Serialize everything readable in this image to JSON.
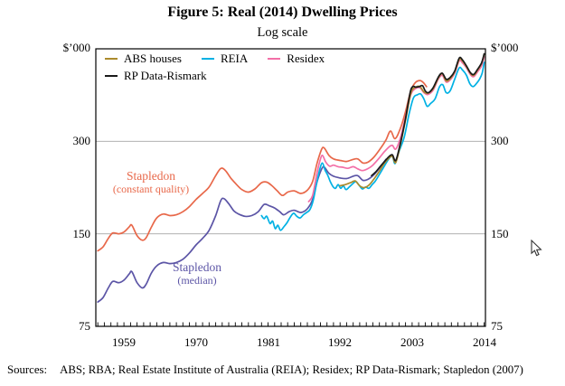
{
  "figure": {
    "title": "Figure 5: Real (2014) Dwelling Prices",
    "subtitle": "Log scale",
    "sources_label": "Sources:",
    "sources_text": "ABS; RBA; Real Estate Institute of Australia (REIA); Residex; RP Data-Rismark; Stapledon (2007)"
  },
  "axes": {
    "unit_label": "$’000",
    "y_tick_labels": [
      "300",
      "150",
      "75"
    ],
    "x_tick_labels": [
      "1959",
      "1970",
      "1981",
      "1992",
      "2003",
      "2014"
    ]
  },
  "legend": {
    "items": [
      {
        "label": "ABS houses",
        "color": "#ab8b2d"
      },
      {
        "label": "REIA",
        "color": "#00b1e4"
      },
      {
        "label": "Residex",
        "color": "#f36fa7"
      },
      {
        "label": "RP Data-Rismark",
        "color": "#1a1a1a"
      }
    ]
  },
  "cursor": {
    "icon": "mouse-pointer-icon"
  },
  "chart_data": {
    "type": "line",
    "title": "Figure 5: Real (2014) Dwelling Prices",
    "subtitle": "Log scale",
    "y_scale": "log",
    "unit": "$'000 (real 2014 dollars)",
    "x_domain": [
      1954.7,
      2014.2
    ],
    "y_domain": [
      75,
      600
    ],
    "y_gridlines": [
      150,
      300
    ],
    "y_ticks": [
      75,
      150,
      300,
      600
    ],
    "x_ticks": [
      1959,
      1970,
      1981,
      1992,
      2003,
      2014
    ],
    "minor_x_tick_every": 1,
    "grid": "horizontal-only",
    "legend_position": "top-left-inside",
    "annotations": [
      {
        "line1": "Stapledon",
        "line2": "(constant quality)",
        "color": "#e8684a"
      },
      {
        "line1": "Stapledon",
        "line2": "(median)",
        "color": "#5c55a6"
      }
    ],
    "series": [
      {
        "name": "Stapledon (constant quality)",
        "color": "#e8684a",
        "points": [
          [
            1955,
            132
          ],
          [
            1955.8,
            136
          ],
          [
            1956.6,
            145
          ],
          [
            1957.3,
            151
          ],
          [
            1958.2,
            150
          ],
          [
            1959,
            152
          ],
          [
            1959.8,
            158
          ],
          [
            1960.2,
            160
          ],
          [
            1961,
            148
          ],
          [
            1961.8,
            143
          ],
          [
            1962.4,
            146
          ],
          [
            1963.2,
            158
          ],
          [
            1964,
            169
          ],
          [
            1965,
            174
          ],
          [
            1966,
            172
          ],
          [
            1967,
            173
          ],
          [
            1968,
            177
          ],
          [
            1969,
            184
          ],
          [
            1970,
            194
          ],
          [
            1971,
            203
          ],
          [
            1972,
            213
          ],
          [
            1973,
            232
          ],
          [
            1973.8,
            245
          ],
          [
            1974.5,
            241
          ],
          [
            1975.3,
            228
          ],
          [
            1976.2,
            217
          ],
          [
            1977,
            209
          ],
          [
            1978,
            205
          ],
          [
            1979,
            210
          ],
          [
            1980,
            220
          ],
          [
            1980.8,
            221
          ],
          [
            1981.6,
            215
          ],
          [
            1982.4,
            207
          ],
          [
            1983.2,
            200
          ],
          [
            1984,
            205
          ],
          [
            1985,
            207
          ],
          [
            1986,
            203
          ],
          [
            1987,
            208
          ],
          [
            1987.8,
            222
          ],
          [
            1988.5,
            255
          ],
          [
            1989.2,
            283
          ],
          [
            1989.6,
            285
          ],
          [
            1990.3,
            270
          ],
          [
            1991,
            263
          ],
          [
            1992,
            260
          ],
          [
            1993,
            258
          ],
          [
            1994,
            262
          ],
          [
            1994.7,
            263
          ],
          [
            1995.5,
            255
          ],
          [
            1996.3,
            257
          ],
          [
            1997.2,
            267
          ],
          [
            1998.2,
            285
          ],
          [
            1999,
            303
          ],
          [
            1999.7,
            324
          ],
          [
            2000.4,
            306
          ],
          [
            2001.2,
            330
          ],
          [
            2002,
            375
          ],
          [
            2002.8,
            438
          ],
          [
            2003.5,
            466
          ],
          [
            2004.2,
            473
          ],
          [
            2004.7,
            466
          ],
          [
            2005.2,
            452
          ]
        ]
      },
      {
        "name": "Stapledon (median)",
        "color": "#5c55a6",
        "points": [
          [
            1955,
            90
          ],
          [
            1955.8,
            93
          ],
          [
            1956.6,
            100
          ],
          [
            1957.3,
            105
          ],
          [
            1958.2,
            104
          ],
          [
            1959,
            106
          ],
          [
            1959.8,
            111
          ],
          [
            1960.2,
            113
          ],
          [
            1961,
            104
          ],
          [
            1961.8,
            100
          ],
          [
            1962.4,
            103
          ],
          [
            1963.2,
            112
          ],
          [
            1964,
            118
          ],
          [
            1965,
            121
          ],
          [
            1966,
            120
          ],
          [
            1967,
            121
          ],
          [
            1968,
            124
          ],
          [
            1969,
            130
          ],
          [
            1970,
            138
          ],
          [
            1971,
            145
          ],
          [
            1972,
            154
          ],
          [
            1973,
            172
          ],
          [
            1973.8,
            193
          ],
          [
            1974.3,
            195
          ],
          [
            1975,
            188
          ],
          [
            1975.8,
            178
          ],
          [
            1976.5,
            174
          ],
          [
            1977.5,
            171
          ],
          [
            1978.5,
            172
          ],
          [
            1979.5,
            177
          ],
          [
            1980.4,
            187
          ],
          [
            1981.2,
            185
          ],
          [
            1982,
            182
          ],
          [
            1982.8,
            177
          ],
          [
            1983.4,
            173
          ],
          [
            1984.2,
            177
          ],
          [
            1985,
            179
          ],
          [
            1986,
            176
          ],
          [
            1987,
            181
          ],
          [
            1987.8,
            194
          ],
          [
            1988.5,
            222
          ],
          [
            1989.2,
            244
          ],
          [
            1989.6,
            247
          ],
          [
            1990.3,
            236
          ],
          [
            1991,
            231
          ],
          [
            1992,
            228
          ],
          [
            1993,
            227
          ],
          [
            1994,
            231
          ],
          [
            1994.7,
            232
          ],
          [
            1995.5,
            224
          ],
          [
            1996.3,
            226
          ],
          [
            1997.2,
            234
          ],
          [
            1998.2,
            248
          ],
          [
            1999,
            262
          ]
        ]
      },
      {
        "name": "REIA",
        "color": "#00b1e4",
        "points": [
          [
            1980,
            172
          ],
          [
            1980.4,
            168
          ],
          [
            1980.8,
            171
          ],
          [
            1981.3,
            162
          ],
          [
            1981.7,
            165
          ],
          [
            1982.1,
            156
          ],
          [
            1982.5,
            160
          ],
          [
            1982.9,
            154
          ],
          [
            1983.4,
            158
          ],
          [
            1983.9,
            163
          ],
          [
            1984.4,
            170
          ],
          [
            1984.9,
            175
          ],
          [
            1985.4,
            171
          ],
          [
            1985.9,
            169
          ],
          [
            1986.4,
            173
          ],
          [
            1986.9,
            176
          ],
          [
            1987.4,
            180
          ],
          [
            1987.9,
            193
          ],
          [
            1988.4,
            218
          ],
          [
            1988.9,
            243
          ],
          [
            1989.3,
            255
          ],
          [
            1989.7,
            242
          ],
          [
            1990.1,
            233
          ],
          [
            1990.5,
            222
          ],
          [
            1990.9,
            214
          ],
          [
            1991.3,
            211
          ],
          [
            1991.7,
            217
          ],
          [
            1992.1,
            211
          ],
          [
            1992.5,
            215
          ],
          [
            1992.9,
            209
          ],
          [
            1993.4,
            213
          ],
          [
            1993.9,
            218
          ],
          [
            1994.4,
            222
          ],
          [
            1994.9,
            216
          ],
          [
            1995.4,
            210
          ],
          [
            1995.9,
            213
          ],
          [
            1996.4,
            211
          ],
          [
            1996.9,
            217
          ],
          [
            1997.4,
            223
          ],
          [
            1998.1,
            236
          ],
          [
            1998.8,
            250
          ],
          [
            1999.5,
            264
          ],
          [
            2000,
            268
          ],
          [
            2000.4,
            254
          ],
          [
            2001,
            278
          ],
          [
            2001.8,
            310
          ],
          [
            2002.5,
            365
          ],
          [
            2003.2,
            415
          ],
          [
            2003.8,
            425
          ],
          [
            2004.3,
            428
          ],
          [
            2004.8,
            412
          ],
          [
            2005.3,
            390
          ],
          [
            2005.8,
            398
          ],
          [
            2006.5,
            412
          ],
          [
            2007.2,
            452
          ],
          [
            2007.7,
            458
          ],
          [
            2008.2,
            432
          ],
          [
            2008.8,
            438
          ],
          [
            2009.5,
            478
          ],
          [
            2010.2,
            520
          ],
          [
            2010.7,
            512
          ],
          [
            2011.3,
            492
          ],
          [
            2011.8,
            463
          ],
          [
            2012.3,
            452
          ],
          [
            2012.8,
            462
          ],
          [
            2013.3,
            478
          ],
          [
            2013.7,
            500
          ],
          [
            2014,
            542
          ]
        ]
      },
      {
        "name": "Residex",
        "color": "#f36fa7",
        "points": [
          [
            1987.2,
            191
          ],
          [
            1987.8,
            200
          ],
          [
            1988.4,
            232
          ],
          [
            1988.9,
            258
          ],
          [
            1989.3,
            270
          ],
          [
            1989.8,
            257
          ],
          [
            1990.4,
            249
          ],
          [
            1991,
            251
          ],
          [
            1991.7,
            248
          ],
          [
            1992.4,
            247
          ],
          [
            1993.2,
            245
          ],
          [
            1994,
            248
          ],
          [
            1994.7,
            244
          ],
          [
            1995.4,
            241
          ],
          [
            1996.2,
            244
          ],
          [
            1997,
            251
          ],
          [
            1998,
            265
          ],
          [
            1998.8,
            278
          ],
          [
            1999.5,
            288
          ],
          [
            2000,
            291
          ],
          [
            2000.5,
            283
          ],
          [
            2001.2,
            307
          ],
          [
            2002,
            360
          ],
          [
            2002.8,
            425
          ],
          [
            2003.5,
            445
          ],
          [
            2004.2,
            448
          ],
          [
            2004.8,
            432
          ],
          [
            2005.4,
            426
          ],
          [
            2006.2,
            440
          ],
          [
            2007,
            478
          ],
          [
            2007.6,
            492
          ],
          [
            2008.2,
            468
          ],
          [
            2008.8,
            475
          ],
          [
            2009.5,
            500
          ],
          [
            2010.2,
            548
          ],
          [
            2010.7,
            540
          ],
          [
            2011.3,
            520
          ],
          [
            2011.9,
            495
          ],
          [
            2012.4,
            487
          ],
          [
            2013,
            505
          ],
          [
            2013.6,
            528
          ],
          [
            2014,
            565
          ]
        ]
      },
      {
        "name": "ABS houses",
        "color": "#ab8b2d",
        "points": [
          [
            1992,
            215
          ],
          [
            1992.8,
            217
          ],
          [
            1993.6,
            220
          ],
          [
            1994.3,
            223
          ],
          [
            1995,
            215
          ],
          [
            1995.7,
            212
          ],
          [
            1996.4,
            216
          ],
          [
            1997.1,
            225
          ],
          [
            1998,
            240
          ],
          [
            1998.8,
            255
          ],
          [
            1999.5,
            265
          ],
          [
            2000,
            268
          ],
          [
            2000.5,
            256
          ],
          [
            2001.2,
            292
          ],
          [
            2002,
            352
          ],
          [
            2002.8,
            430
          ],
          [
            2003.5,
            450
          ],
          [
            2004.2,
            452
          ],
          [
            2004.8,
            435
          ],
          [
            2005.4,
            430
          ],
          [
            2006.2,
            445
          ],
          [
            2007,
            482
          ],
          [
            2007.6,
            498
          ],
          [
            2008.2,
            472
          ],
          [
            2008.8,
            480
          ],
          [
            2009.5,
            505
          ],
          [
            2010.2,
            555
          ],
          [
            2010.7,
            548
          ],
          [
            2011.3,
            525
          ],
          [
            2011.9,
            500
          ],
          [
            2012.4,
            492
          ],
          [
            2013,
            512
          ],
          [
            2013.6,
            538
          ],
          [
            2014,
            575
          ]
        ]
      },
      {
        "name": "RP Data-Rismark",
        "color": "#1a1a1a",
        "points": [
          [
            1996.8,
            232
          ],
          [
            1997.4,
            238
          ],
          [
            1998.1,
            248
          ],
          [
            1998.8,
            258
          ],
          [
            1999.5,
            268
          ],
          [
            2000,
            271
          ],
          [
            2000.5,
            260
          ],
          [
            2001.2,
            295
          ],
          [
            2002,
            356
          ],
          [
            2002.7,
            432
          ],
          [
            2003.1,
            452
          ],
          [
            2003.6,
            450
          ],
          [
            2004.1,
            452
          ],
          [
            2004.6,
            455
          ],
          [
            2005,
            438
          ],
          [
            2005.5,
            432
          ],
          [
            2006.2,
            448
          ],
          [
            2007,
            485
          ],
          [
            2007.6,
            500
          ],
          [
            2008.2,
            478
          ],
          [
            2008.8,
            484
          ],
          [
            2009.5,
            508
          ],
          [
            2010.2,
            560
          ],
          [
            2010.7,
            552
          ],
          [
            2011.3,
            528
          ],
          [
            2011.9,
            502
          ],
          [
            2012.4,
            495
          ],
          [
            2013,
            515
          ],
          [
            2013.6,
            540
          ],
          [
            2014,
            578
          ]
        ]
      }
    ]
  }
}
